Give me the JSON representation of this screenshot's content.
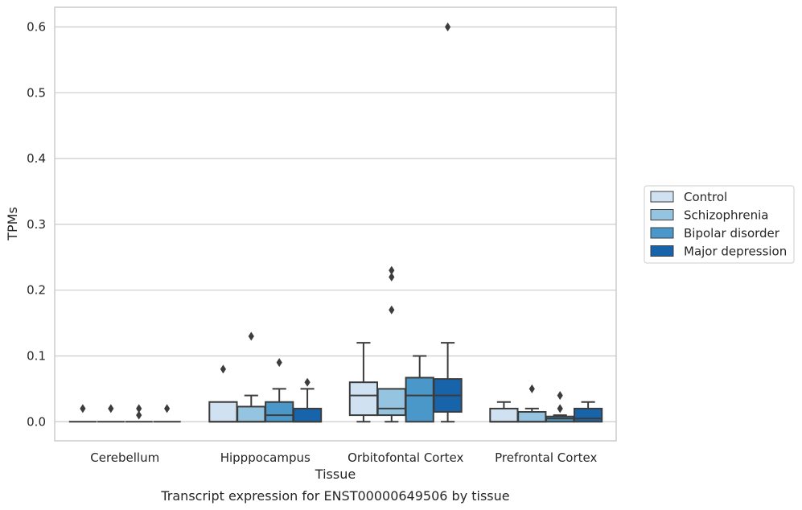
{
  "caption": "Transcript expression for ENST00000649506 by tissue",
  "chart_data": {
    "type": "box",
    "xlabel": "Tissue",
    "ylabel": "TPMs",
    "ylim": [
      -0.029,
      0.63
    ],
    "yticks": [
      0.0,
      0.1,
      0.2,
      0.3,
      0.4,
      0.5,
      0.6
    ],
    "ytick_labels": [
      "0.0",
      "0.1",
      "0.2",
      "0.3",
      "0.4",
      "0.5",
      "0.6"
    ],
    "grid": "horizontal",
    "legend_position": "right",
    "categories": [
      "Cerebellum",
      "Hipppocampus",
      "Orbitofontal Cortex",
      "Prefrontal Cortex"
    ],
    "series": [
      {
        "name": "Control",
        "color": "#d0e1f2",
        "boxes": [
          {
            "whislo": 0,
            "q1": 0,
            "med": 0,
            "q3": 0,
            "whishi": 0,
            "fliers": [
              0.02
            ]
          },
          {
            "whislo": 0,
            "q1": 0,
            "med": 0,
            "q3": 0.03,
            "whishi": 0.03,
            "fliers": [
              0.08
            ]
          },
          {
            "whislo": 0,
            "q1": 0.01,
            "med": 0.04,
            "q3": 0.06,
            "whishi": 0.12,
            "fliers": []
          },
          {
            "whislo": 0,
            "q1": 0,
            "med": 0,
            "q3": 0.02,
            "whishi": 0.03,
            "fliers": []
          }
        ]
      },
      {
        "name": "Schizophrenia",
        "color": "#94c4df",
        "boxes": [
          {
            "whislo": 0,
            "q1": 0,
            "med": 0,
            "q3": 0,
            "whishi": 0,
            "fliers": [
              0.02
            ]
          },
          {
            "whislo": 0,
            "q1": 0,
            "med": 0,
            "q3": 0.023,
            "whishi": 0.04,
            "fliers": [
              0.13
            ]
          },
          {
            "whislo": 0,
            "q1": 0.01,
            "med": 0.02,
            "q3": 0.05,
            "whishi": 0.05,
            "fliers": [
              0.17,
              0.22,
              0.23
            ]
          },
          {
            "whislo": 0,
            "q1": 0,
            "med": 0,
            "q3": 0.015,
            "whishi": 0.02,
            "fliers": [
              0.05
            ]
          }
        ]
      },
      {
        "name": "Bipolar disorder",
        "color": "#4a98c9",
        "boxes": [
          {
            "whislo": 0,
            "q1": 0,
            "med": 0,
            "q3": 0,
            "whishi": 0,
            "fliers": [
              0.01,
              0.02
            ]
          },
          {
            "whislo": 0,
            "q1": 0,
            "med": 0.01,
            "q3": 0.03,
            "whishi": 0.05,
            "fliers": [
              0.09
            ]
          },
          {
            "whislo": 0,
            "q1": 0,
            "med": 0.04,
            "q3": 0.067,
            "whishi": 0.1,
            "fliers": []
          },
          {
            "whislo": 0,
            "q1": 0,
            "med": 0.005,
            "q3": 0.008,
            "whishi": 0.01,
            "fliers": [
              0.02,
              0.04
            ]
          }
        ]
      },
      {
        "name": "Major depression",
        "color": "#1764ab",
        "boxes": [
          {
            "whislo": 0,
            "q1": 0,
            "med": 0,
            "q3": 0,
            "whishi": 0,
            "fliers": [
              0.02
            ]
          },
          {
            "whislo": 0,
            "q1": 0,
            "med": 0,
            "q3": 0.02,
            "whishi": 0.05,
            "fliers": [
              0.06
            ]
          },
          {
            "whislo": 0,
            "q1": 0.015,
            "med": 0.04,
            "q3": 0.065,
            "whishi": 0.12,
            "fliers": [
              0.6
            ]
          },
          {
            "whislo": 0,
            "q1": 0,
            "med": 0.005,
            "q3": 0.02,
            "whishi": 0.03,
            "fliers": []
          }
        ]
      }
    ]
  }
}
